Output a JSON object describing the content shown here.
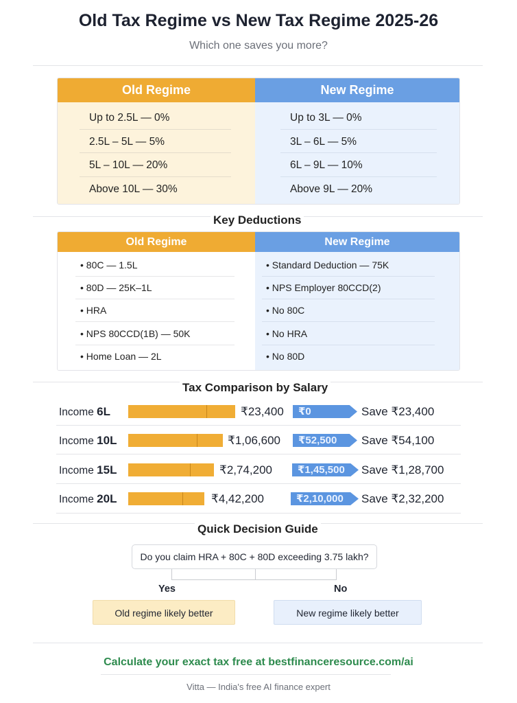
{
  "header": {
    "title": "Old Tax Regime vs New Tax Regime 2025-26",
    "subtitle": "Which one saves you more?"
  },
  "slabs": {
    "old_label": "Old Regime",
    "new_label": "New Regime",
    "old": [
      "Up to 2.5L — 0%",
      "2.5L – 5L — 5%",
      "5L – 10L — 20%",
      "Above 10L — 30%"
    ],
    "new": [
      "Up to 3L — 0%",
      "3L – 6L — 5%",
      "6L – 9L — 10%",
      "Above 9L — 20%"
    ]
  },
  "deductions": {
    "title": "Key Deductions",
    "old_label": "Old Regime",
    "new_label": "New Regime",
    "old": [
      "• 80C — 1.5L",
      "• 80D — 25K–1L",
      "• HRA",
      "• NPS 80CCD(1B) — 50K",
      "• Home Loan — 2L"
    ],
    "new": [
      "• Standard Deduction — 75K",
      "• NPS Employer 80CCD(2)",
      "• No 80C",
      "• No HRA",
      "• No 80D"
    ]
  },
  "comparison": {
    "title": "Tax Comparison by Salary",
    "income_prefix": "Income",
    "rows": [
      {
        "income": "6L",
        "old_tax": "₹23,400",
        "new_tax": "₹0",
        "save": "Save ₹23,400"
      },
      {
        "income": "10L",
        "old_tax": "₹1,06,600",
        "new_tax": "₹52,500",
        "save": "Save ₹54,100"
      },
      {
        "income": "15L",
        "old_tax": "₹2,74,200",
        "new_tax": "₹1,45,500",
        "save": "Save ₹1,28,700"
      },
      {
        "income": "20L",
        "old_tax": "₹4,42,200",
        "new_tax": "₹2,10,000",
        "save": "Save ₹2,32,200"
      }
    ]
  },
  "guide": {
    "title": "Quick Decision Guide",
    "question": "Do you claim HRA + 80C + 80D exceeding 3.75 lakh?",
    "yes": "Yes",
    "no": "No",
    "yes_result": "Old regime likely better",
    "no_result": "New regime likely better"
  },
  "footer": {
    "cta": "Calculate your exact tax free at bestfinanceresource.com/ai",
    "tagline": "Vitta — India's free AI finance expert"
  },
  "colors": {
    "old": "#efab33",
    "new": "#6a9fe3",
    "cta": "#2e8b4e"
  }
}
